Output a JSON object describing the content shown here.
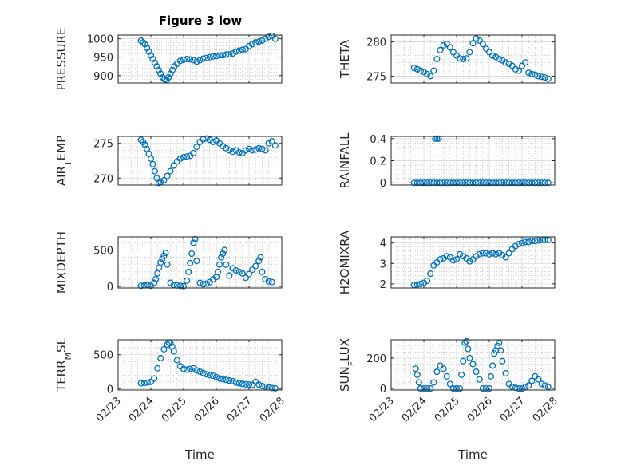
{
  "figure": {
    "title": "Figure 3 low"
  },
  "colors": {
    "marker": "#0072BD",
    "axes": "#262626",
    "grid": "#b0b0b0",
    "background": "#ffffff"
  },
  "chart_data": [
    {
      "type": "scatter",
      "id": "pressure",
      "ylabel": "PRESSURE",
      "ylim": [
        880,
        1010
      ],
      "yticks": [
        900,
        950,
        1000
      ],
      "yticklabels": [
        "900",
        "950",
        "1000"
      ],
      "xlim": [
        0,
        5
      ],
      "xticklabels": [],
      "xlabel": "",
      "title": "Figure 3 low",
      "grid": true,
      "x": [
        0.7,
        0.76,
        0.82,
        0.88,
        0.94,
        1.0,
        1.06,
        1.12,
        1.18,
        1.24,
        1.3,
        1.36,
        1.42,
        1.48,
        1.54,
        1.6,
        1.66,
        1.72,
        1.8,
        1.9,
        2.0,
        2.1,
        2.2,
        2.3,
        2.4,
        2.5,
        2.6,
        2.7,
        2.8,
        2.9,
        3.0,
        3.1,
        3.2,
        3.3,
        3.4,
        3.5,
        3.6,
        3.7,
        3.8,
        3.9,
        4.0,
        4.1,
        4.2,
        4.3,
        4.4,
        4.5,
        4.6,
        4.7,
        4.8
      ],
      "y": [
        995,
        990,
        985,
        975,
        965,
        955,
        945,
        935,
        925,
        915,
        905,
        895,
        890,
        888,
        895,
        905,
        915,
        925,
        932,
        940,
        943,
        945,
        944,
        942,
        938,
        942,
        946,
        948,
        950,
        952,
        953,
        955,
        955,
        957,
        958,
        960,
        965,
        968,
        970,
        972,
        980,
        985,
        990,
        992,
        995,
        1000,
        1005,
        1008,
        1000
      ]
    },
    {
      "type": "scatter",
      "id": "theta",
      "ylabel": "THETA",
      "ylim": [
        274,
        281
      ],
      "yticks": [
        275,
        280
      ],
      "yticklabels": [
        "275",
        "280"
      ],
      "xlim": [
        0,
        5
      ],
      "xticklabels": [],
      "xlabel": "",
      "grid": true,
      "x": [
        0.7,
        0.8,
        0.9,
        1.0,
        1.1,
        1.2,
        1.3,
        1.4,
        1.5,
        1.6,
        1.7,
        1.8,
        1.9,
        2.0,
        2.1,
        2.2,
        2.3,
        2.4,
        2.5,
        2.6,
        2.7,
        2.8,
        2.9,
        3.0,
        3.1,
        3.2,
        3.3,
        3.4,
        3.5,
        3.6,
        3.7,
        3.8,
        3.9,
        4.0,
        4.1,
        4.2,
        4.3,
        4.4,
        4.5,
        4.6,
        4.7,
        4.8
      ],
      "y": [
        276.2,
        276.0,
        275.8,
        275.6,
        275.3,
        275.0,
        275.8,
        277.5,
        278.8,
        279.5,
        279.7,
        279.2,
        278.5,
        278.0,
        277.6,
        277.5,
        277.6,
        278.5,
        279.8,
        280.5,
        280.2,
        279.7,
        279.0,
        278.5,
        278.0,
        277.8,
        277.5,
        277.3,
        277.0,
        276.8,
        276.5,
        276.0,
        275.8,
        276.5,
        277.0,
        275.5,
        275.3,
        275.2,
        275.0,
        274.9,
        274.8,
        274.6
      ]
    },
    {
      "type": "scatter",
      "id": "air_temp",
      "ylabel": "AIR_TEMP",
      "ylim": [
        269,
        276
      ],
      "yticks": [
        270,
        275
      ],
      "yticklabels": [
        "270",
        "275"
      ],
      "xlim": [
        0,
        5
      ],
      "xticklabels": [],
      "xlabel": "",
      "grid": true,
      "x": [
        0.7,
        0.76,
        0.82,
        0.88,
        0.94,
        1.0,
        1.06,
        1.12,
        1.18,
        1.24,
        1.3,
        1.4,
        1.5,
        1.6,
        1.7,
        1.8,
        1.9,
        2.0,
        2.1,
        2.2,
        2.3,
        2.4,
        2.5,
        2.6,
        2.7,
        2.8,
        2.9,
        3.0,
        3.1,
        3.2,
        3.3,
        3.4,
        3.5,
        3.6,
        3.7,
        3.8,
        3.9,
        4.0,
        4.1,
        4.2,
        4.3,
        4.4,
        4.5,
        4.6,
        4.7,
        4.8
      ],
      "y": [
        275.5,
        275.2,
        274.8,
        274.2,
        273.5,
        272.8,
        272.0,
        271.0,
        270.0,
        269.3,
        269.4,
        269.7,
        270.3,
        271.0,
        271.8,
        272.4,
        272.8,
        273.0,
        273.1,
        273.2,
        273.6,
        274.5,
        275.2,
        275.6,
        275.7,
        275.5,
        275.2,
        275.4,
        275.0,
        274.6,
        274.3,
        274.0,
        273.8,
        274.0,
        273.7,
        273.6,
        274.0,
        274.2,
        274.0,
        274.1,
        274.3,
        274.2,
        274.0,
        275.0,
        275.3,
        274.7
      ]
    },
    {
      "type": "scatter",
      "id": "rainfall",
      "ylabel": "RAINFALL",
      "ylim": [
        -0.02,
        0.42
      ],
      "yticks": [
        0,
        0.2,
        0.4
      ],
      "yticklabels": [
        "0",
        "0.2",
        "0.4"
      ],
      "xlim": [
        0,
        5
      ],
      "xticklabels": [],
      "xlabel": "",
      "grid": true,
      "x": [
        0.7,
        0.8,
        0.9,
        1.0,
        1.1,
        1.2,
        1.3,
        1.4,
        1.5,
        1.6,
        1.7,
        1.8,
        1.9,
        2.0,
        2.1,
        2.2,
        2.3,
        2.4,
        2.5,
        2.6,
        2.7,
        2.8,
        2.9,
        3.0,
        3.1,
        3.2,
        3.3,
        3.4,
        3.5,
        3.6,
        3.7,
        3.8,
        3.9,
        4.0,
        4.1,
        4.2,
        4.3,
        4.4,
        4.5,
        4.6,
        4.7,
        4.8,
        1.35,
        1.4,
        1.45
      ],
      "y": [
        0,
        0,
        0,
        0,
        0,
        0,
        0,
        0,
        0,
        0,
        0,
        0,
        0,
        0,
        0,
        0,
        0,
        0,
        0,
        0,
        0,
        0,
        0,
        0,
        0,
        0,
        0,
        0,
        0,
        0,
        0,
        0,
        0,
        0,
        0,
        0,
        0,
        0,
        0,
        0,
        0,
        0,
        0.4,
        0.4,
        0.4
      ]
    },
    {
      "type": "scatter",
      "id": "mixdepth",
      "ylabel": "MIXDEPTH",
      "ylim": [
        -20,
        680
      ],
      "yticks": [
        0,
        500
      ],
      "yticklabels": [
        "0",
        "500"
      ],
      "xlim": [
        0,
        5
      ],
      "xticklabels": [],
      "xlabel": "",
      "grid": true,
      "x": [
        0.7,
        0.8,
        0.9,
        1.0,
        1.1,
        1.15,
        1.2,
        1.25,
        1.3,
        1.35,
        1.4,
        1.45,
        1.5,
        1.6,
        1.7,
        1.8,
        1.9,
        2.0,
        2.1,
        2.15,
        2.2,
        2.25,
        2.3,
        2.35,
        2.4,
        2.5,
        2.6,
        2.7,
        2.8,
        2.9,
        3.0,
        3.05,
        3.1,
        3.15,
        3.2,
        3.25,
        3.3,
        3.4,
        3.5,
        3.6,
        3.7,
        3.8,
        3.9,
        4.0,
        4.1,
        4.2,
        4.3,
        4.35,
        4.4,
        4.5,
        4.6,
        4.7
      ],
      "y": [
        10,
        15,
        20,
        10,
        50,
        100,
        180,
        260,
        330,
        380,
        420,
        460,
        300,
        50,
        20,
        15,
        10,
        5,
        80,
        200,
        320,
        450,
        600,
        650,
        350,
        50,
        30,
        40,
        60,
        100,
        130,
        200,
        300,
        400,
        450,
        500,
        300,
        150,
        250,
        220,
        200,
        180,
        120,
        170,
        230,
        280,
        350,
        400,
        200,
        100,
        70,
        60
      ]
    },
    {
      "type": "scatter",
      "id": "h2omixra",
      "ylabel": "H2OMIXRA",
      "ylim": [
        1.8,
        4.3
      ],
      "yticks": [
        2,
        3,
        4
      ],
      "yticklabels": [
        "2",
        "3",
        "4"
      ],
      "xlim": [
        0,
        5
      ],
      "xticklabels": [],
      "xlabel": "",
      "grid": true,
      "x": [
        0.7,
        0.8,
        0.9,
        1.0,
        1.1,
        1.2,
        1.3,
        1.4,
        1.5,
        1.6,
        1.7,
        1.8,
        1.9,
        2.0,
        2.1,
        2.2,
        2.3,
        2.4,
        2.5,
        2.6,
        2.7,
        2.8,
        2.9,
        3.0,
        3.1,
        3.2,
        3.3,
        3.4,
        3.5,
        3.6,
        3.7,
        3.8,
        3.9,
        4.0,
        4.1,
        4.2,
        4.3,
        4.4,
        4.5,
        4.6,
        4.7,
        4.8
      ],
      "y": [
        1.95,
        1.97,
        2.0,
        2.05,
        2.15,
        2.5,
        2.9,
        3.05,
        3.2,
        3.25,
        3.35,
        3.3,
        3.15,
        3.2,
        3.45,
        3.35,
        3.25,
        3.1,
        3.2,
        3.35,
        3.45,
        3.5,
        3.5,
        3.45,
        3.5,
        3.45,
        3.5,
        3.4,
        3.3,
        3.5,
        3.7,
        3.85,
        3.95,
        4.0,
        4.05,
        4.05,
        4.1,
        4.1,
        4.12,
        4.15,
        4.15,
        4.15
      ]
    },
    {
      "type": "scatter",
      "id": "terr_msl",
      "ylabel": "TERR_MSL",
      "ylim": [
        -20,
        720
      ],
      "yticks": [
        0,
        500
      ],
      "yticklabels": [
        "0",
        "500"
      ],
      "xlim": [
        0,
        5
      ],
      "xticklabels": [
        "02/23",
        "02/24",
        "02/25",
        "02/26",
        "02/27",
        "02/28"
      ],
      "xlabel": "Time",
      "grid": true,
      "x": [
        0.7,
        0.8,
        0.9,
        1.0,
        1.1,
        1.2,
        1.3,
        1.4,
        1.5,
        1.55,
        1.6,
        1.65,
        1.7,
        1.8,
        1.9,
        2.0,
        2.1,
        2.2,
        2.3,
        2.4,
        2.5,
        2.6,
        2.7,
        2.8,
        2.9,
        3.0,
        3.1,
        3.2,
        3.3,
        3.4,
        3.5,
        3.6,
        3.7,
        3.8,
        3.9,
        4.0,
        4.1,
        4.2,
        4.3,
        4.4,
        4.5,
        4.6,
        4.7,
        4.8
      ],
      "y": [
        80,
        85,
        90,
        100,
        150,
        300,
        450,
        580,
        650,
        680,
        670,
        620,
        550,
        420,
        330,
        290,
        280,
        290,
        300,
        270,
        250,
        230,
        210,
        200,
        190,
        170,
        150,
        140,
        130,
        120,
        110,
        90,
        80,
        70,
        65,
        60,
        55,
        100,
        60,
        40,
        30,
        20,
        10,
        5
      ]
    },
    {
      "type": "scatter",
      "id": "sun_flux",
      "ylabel": "SUN_FLUX",
      "ylim": [
        -10,
        320
      ],
      "yticks": [
        0,
        200
      ],
      "yticklabels": [
        "0",
        "200"
      ],
      "xlim": [
        0,
        5
      ],
      "xticklabels": [
        "02/23",
        "02/24",
        "02/25",
        "02/26",
        "02/27",
        "02/28"
      ],
      "xlabel": "Time",
      "grid": true,
      "x": [
        0.75,
        0.8,
        0.85,
        0.9,
        1.0,
        1.1,
        1.2,
        1.3,
        1.4,
        1.5,
        1.6,
        1.7,
        1.8,
        1.9,
        2.0,
        2.1,
        2.15,
        2.2,
        2.25,
        2.3,
        2.35,
        2.4,
        2.5,
        2.6,
        2.7,
        2.8,
        2.9,
        3.0,
        3.05,
        3.1,
        3.15,
        3.2,
        3.25,
        3.3,
        3.35,
        3.4,
        3.5,
        3.6,
        3.7,
        3.8,
        3.9,
        4.0,
        4.1,
        4.2,
        4.3,
        4.4,
        4.5,
        4.6,
        4.7,
        4.8
      ],
      "y": [
        130,
        90,
        40,
        0,
        0,
        0,
        0,
        40,
        110,
        150,
        130,
        80,
        30,
        0,
        0,
        0,
        90,
        180,
        300,
        310,
        260,
        200,
        160,
        110,
        60,
        0,
        0,
        0,
        80,
        150,
        230,
        250,
        280,
        300,
        250,
        180,
        100,
        30,
        10,
        5,
        0,
        0,
        10,
        20,
        50,
        80,
        60,
        30,
        20,
        10
      ]
    }
  ]
}
